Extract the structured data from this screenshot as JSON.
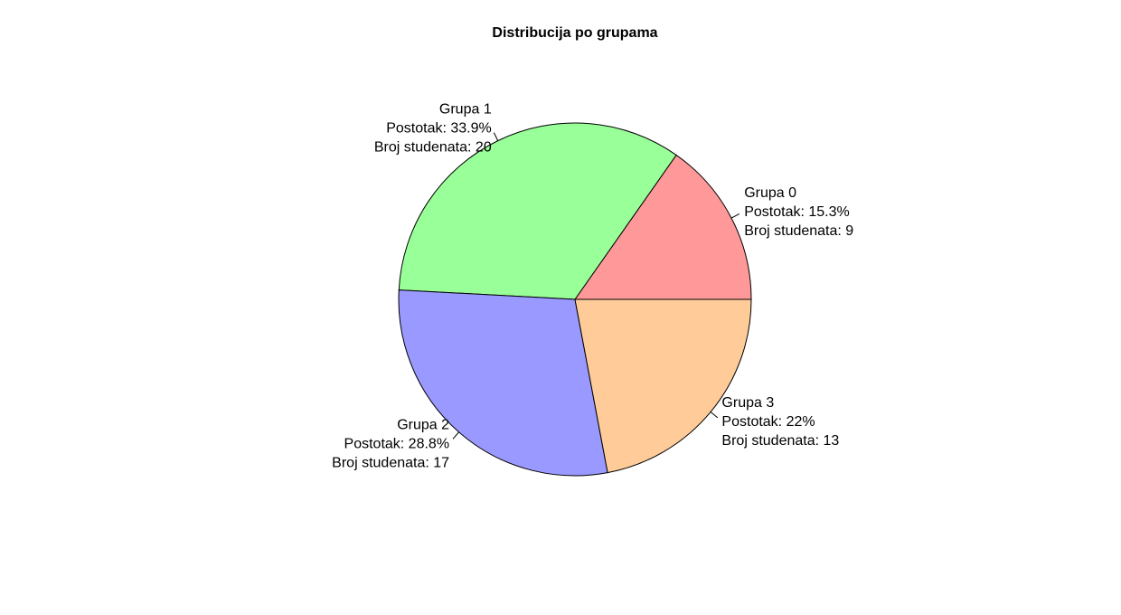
{
  "chart_data": {
    "type": "pie",
    "title": "Distribucija po grupama",
    "start_angle_deg": 0,
    "direction": "counterclockwise",
    "slices": [
      {
        "name": "Grupa 0",
        "value": 9,
        "color": "#FF9999",
        "label_lines": [
          "Grupa 0",
          "Postotak: 15.3%",
          "Broj studenata: 9"
        ]
      },
      {
        "name": "Grupa 1",
        "value": 20,
        "color": "#99FF99",
        "label_lines": [
          "Grupa 1",
          "Postotak: 33.9%",
          "Broj studenata: 20"
        ]
      },
      {
        "name": "Grupa 2",
        "value": 17,
        "color": "#9999FF",
        "label_lines": [
          "Grupa 2",
          "Postotak: 28.8%",
          "Broj studenata: 17"
        ]
      },
      {
        "name": "Grupa 3",
        "value": 13,
        "color": "#FFCC99",
        "label_lines": [
          "Grupa 3",
          "Postotak: 22%",
          "Broj studenata: 13"
        ]
      }
    ]
  }
}
